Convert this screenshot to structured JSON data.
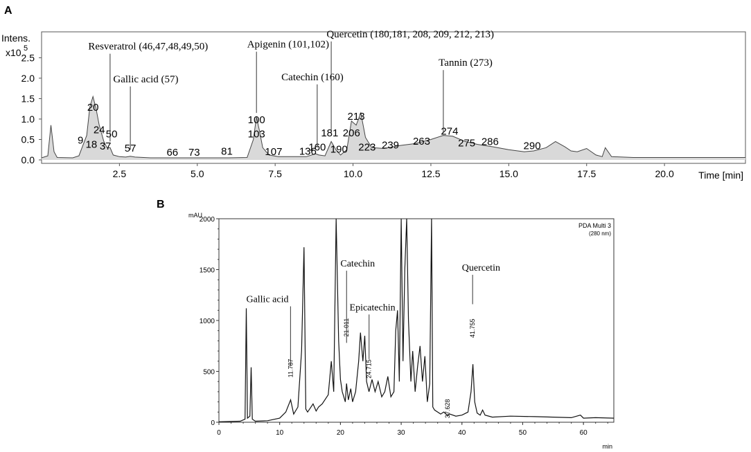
{
  "chart_data": [
    {
      "panel": "A",
      "type": "line",
      "ylabel_top": "Intens.",
      "ylabel_scale": "x10",
      "ylabel_exp": "5",
      "xlabel_unit": "Time [min]",
      "xlim": [
        0,
        22.6
      ],
      "ylim": [
        0,
        3.1
      ],
      "x_ticks": [
        2.5,
        5.0,
        7.5,
        10.0,
        12.5,
        15.0,
        17.5,
        20.0
      ],
      "x_tick_labels": [
        "2.5",
        "5.0",
        "7.5",
        "10.0",
        "12.5",
        "15.0",
        "17.5",
        "20.0"
      ],
      "y_ticks": [
        0.0,
        0.5,
        1.0,
        1.5,
        2.0,
        2.5
      ],
      "y_tick_labels": [
        "0.0",
        "0.5",
        "1.0",
        "1.5",
        "2.0",
        "2.5"
      ],
      "series": [
        {
          "x": [
            0.0,
            0.2,
            0.3,
            0.4,
            0.5,
            1.0,
            1.2,
            1.3,
            1.45,
            1.55,
            1.65,
            1.75,
            1.85,
            2.0,
            2.1,
            2.2,
            2.3,
            2.5,
            2.7,
            2.85,
            3.0,
            3.5,
            4.0,
            4.5,
            5.0,
            5.5,
            6.0,
            6.6,
            6.8,
            6.9,
            7.0,
            7.1,
            7.3,
            7.6,
            8.0,
            8.5,
            8.8,
            8.9,
            9.1,
            9.3,
            9.45,
            9.6,
            9.8,
            9.95,
            10.1,
            10.25,
            10.4,
            10.6,
            11.0,
            11.5,
            12.0,
            12.5,
            12.9,
            13.2,
            13.6,
            14.0,
            14.5,
            15.0,
            15.5,
            15.8,
            16.2,
            16.5,
            16.8,
            17.0,
            17.2,
            17.5,
            17.8,
            18.0,
            18.1,
            18.3,
            19.0,
            20.0,
            21.0,
            22.0,
            22.6
          ],
          "y": [
            0.05,
            0.1,
            0.85,
            0.2,
            0.06,
            0.05,
            0.1,
            0.3,
            0.6,
            1.3,
            1.55,
            1.25,
            0.85,
            0.45,
            0.3,
            0.3,
            0.12,
            0.08,
            0.07,
            0.09,
            0.07,
            0.05,
            0.05,
            0.05,
            0.05,
            0.05,
            0.05,
            0.06,
            0.5,
            1.05,
            0.7,
            0.3,
            0.12,
            0.08,
            0.08,
            0.08,
            0.15,
            0.12,
            0.1,
            0.45,
            0.25,
            0.12,
            0.25,
            0.95,
            0.85,
            1.15,
            0.55,
            0.3,
            0.28,
            0.35,
            0.4,
            0.5,
            0.6,
            0.58,
            0.45,
            0.38,
            0.32,
            0.25,
            0.2,
            0.22,
            0.3,
            0.45,
            0.32,
            0.22,
            0.2,
            0.28,
            0.12,
            0.08,
            0.3,
            0.08,
            0.06,
            0.06,
            0.06,
            0.06,
            0.06
          ]
        }
      ],
      "peak_labels": [
        {
          "label": "9",
          "x": 1.25,
          "y": 0.4
        },
        {
          "label": "18",
          "x": 1.6,
          "y": 0.3
        },
        {
          "label": "20",
          "x": 1.65,
          "y": 1.2
        },
        {
          "label": "24",
          "x": 1.85,
          "y": 0.65
        },
        {
          "label": "50",
          "x": 2.25,
          "y": 0.55
        },
        {
          "label": "37",
          "x": 2.05,
          "y": 0.25
        },
        {
          "label": "57",
          "x": 2.85,
          "y": 0.2
        },
        {
          "label": "66",
          "x": 4.2,
          "y": 0.1
        },
        {
          "label": "73",
          "x": 4.9,
          "y": 0.1
        },
        {
          "label": "81",
          "x": 5.95,
          "y": 0.13
        },
        {
          "label": "100",
          "x": 6.9,
          "y": 0.9
        },
        {
          "label": "103",
          "x": 6.9,
          "y": 0.55
        },
        {
          "label": "107",
          "x": 7.45,
          "y": 0.12
        },
        {
          "label": "136",
          "x": 8.55,
          "y": 0.13
        },
        {
          "label": "160",
          "x": 8.85,
          "y": 0.23
        },
        {
          "label": "181",
          "x": 9.25,
          "y": 0.58
        },
        {
          "label": "190",
          "x": 9.55,
          "y": 0.18
        },
        {
          "label": "206",
          "x": 9.95,
          "y": 0.58
        },
        {
          "label": "213",
          "x": 10.1,
          "y": 0.98
        },
        {
          "label": "223",
          "x": 10.45,
          "y": 0.23
        },
        {
          "label": "239",
          "x": 11.2,
          "y": 0.28
        },
        {
          "label": "263",
          "x": 12.2,
          "y": 0.37
        },
        {
          "label": "274",
          "x": 13.1,
          "y": 0.62
        },
        {
          "label": "275",
          "x": 13.65,
          "y": 0.33
        },
        {
          "label": "286",
          "x": 14.4,
          "y": 0.36
        },
        {
          "label": "290",
          "x": 15.75,
          "y": 0.26
        }
      ],
      "annotations": [
        {
          "text": "Resveratrol (46,47,48,49,50)",
          "x": 1.5,
          "y": 2.7,
          "tip": [
            2.2,
            0.45
          ]
        },
        {
          "text": "Gallic acid (57)",
          "x": 2.3,
          "y": 1.9,
          "tip": [
            2.85,
            0.25
          ]
        },
        {
          "text": "Apigenin (101,102)",
          "x": 6.6,
          "y": 2.75,
          "tip": [
            6.9,
            1.15
          ]
        },
        {
          "text": "Catechin (160)",
          "x": 7.7,
          "y": 1.95,
          "tip": [
            8.85,
            0.3
          ]
        },
        {
          "text": "Quercetin (180,181, 208, 209, 212, 213)",
          "x": 9.15,
          "y": 3.0,
          "tip": [
            9.3,
            0.65
          ]
        },
        {
          "text": "Tannin (273)",
          "x": 12.75,
          "y": 2.3,
          "tip": [
            12.9,
            0.65
          ]
        }
      ]
    },
    {
      "panel": "B",
      "type": "line",
      "ylabel": "mAU",
      "xlabel": "min",
      "legend_line1": "PDA Multi 3",
      "legend_line2": "(280 nm)",
      "xlim": [
        0,
        65
      ],
      "ylim": [
        0,
        2000
      ],
      "x_ticks": [
        0,
        10,
        20,
        30,
        40,
        50,
        60
      ],
      "y_ticks": [
        0,
        500,
        1000,
        1500,
        2000
      ],
      "series": [
        {
          "x": [
            0,
            3.5,
            4.3,
            4.5,
            4.7,
            5.1,
            5.3,
            5.5,
            6.0,
            8.0,
            10.0,
            11.0,
            11.8,
            12.3,
            13.0,
            13.6,
            14.0,
            14.3,
            14.6,
            15.5,
            16.0,
            16.4,
            17.0,
            18.0,
            18.5,
            18.9,
            19.3,
            19.7,
            20.0,
            20.3,
            20.8,
            21.0,
            21.3,
            21.7,
            22.0,
            22.5,
            23.0,
            23.3,
            23.7,
            24.0,
            24.3,
            24.7,
            25.2,
            25.7,
            26.2,
            26.8,
            27.3,
            27.8,
            28.3,
            28.8,
            29.1,
            29.4,
            29.7,
            30.0,
            30.3,
            30.6,
            30.9,
            31.2,
            31.6,
            31.9,
            32.3,
            32.7,
            33.1,
            33.5,
            33.9,
            34.3,
            34.7,
            35.0,
            35.2,
            35.5,
            36.0,
            36.5,
            37.0,
            37.6,
            38.0,
            39.0,
            40.0,
            41.0,
            41.5,
            41.8,
            42.1,
            42.5,
            43.0,
            43.4,
            43.8,
            45.0,
            48.0,
            52.0,
            55.0,
            58.0,
            59.5,
            60.0,
            62.0,
            65.0
          ],
          "y": [
            5,
            10,
            30,
            1120,
            40,
            60,
            540,
            30,
            10,
            15,
            40,
            100,
            220,
            80,
            150,
            700,
            1720,
            130,
            100,
            180,
            110,
            150,
            180,
            270,
            600,
            300,
            2000,
            800,
            420,
            300,
            200,
            380,
            220,
            330,
            200,
            300,
            600,
            880,
            600,
            850,
            400,
            300,
            420,
            300,
            400,
            250,
            300,
            450,
            250,
            300,
            900,
            1100,
            400,
            2000,
            600,
            1500,
            2000,
            1000,
            400,
            700,
            300,
            550,
            750,
            400,
            650,
            200,
            380,
            2000,
            150,
            120,
            100,
            80,
            100,
            70,
            80,
            60,
            70,
            100,
            300,
            570,
            200,
            90,
            70,
            120,
            70,
            50,
            60,
            55,
            50,
            45,
            70,
            40,
            45,
            40
          ]
        }
      ],
      "peak_values": [
        {
          "label": "11.787",
          "x": 11.787
        },
        {
          "label": "21.011",
          "x": 21.011
        },
        {
          "label": "24.715",
          "x": 24.715
        },
        {
          "label": "37.628",
          "x": 37.628
        },
        {
          "label": "41.755",
          "x": 41.755
        }
      ],
      "annotations": [
        {
          "text": "Gallic acid",
          "x": 4.5,
          "y": 1180,
          "tip": [
            11.787,
            550
          ]
        },
        {
          "text": "Catechin",
          "x": 20.0,
          "y": 1530,
          "tip": [
            21.011,
            780
          ]
        },
        {
          "text": "Epicatechin",
          "x": 21.5,
          "y": 1100,
          "tip": [
            24.715,
            620
          ]
        },
        {
          "text": "Quercetin",
          "x": 40.0,
          "y": 1490,
          "tip": [
            41.755,
            1160
          ]
        }
      ]
    }
  ],
  "panels": {
    "a_label": "A",
    "b_label": "B"
  }
}
